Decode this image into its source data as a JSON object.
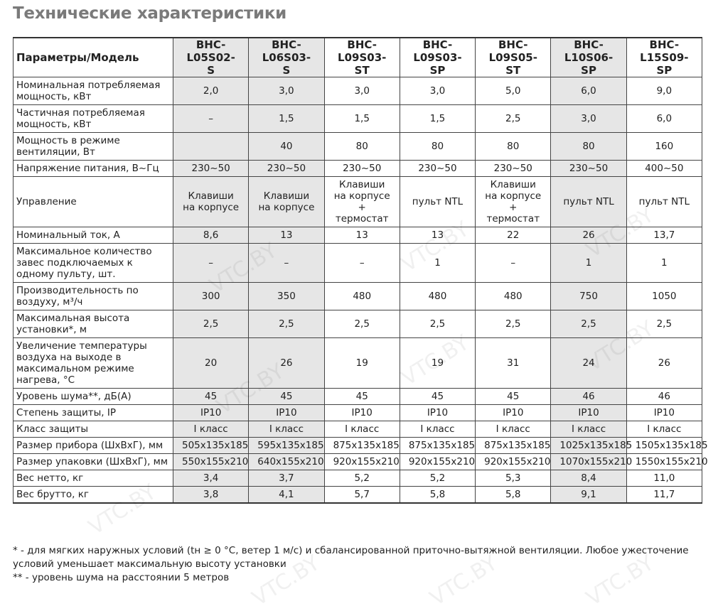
{
  "title": "Технические характеристики",
  "watermark": "VTC.BY",
  "table": {
    "header": [
      "Параметры/Модель",
      "BHC-L05S02-S",
      "BHC-L06S03-S",
      "BHC-L09S03-ST",
      "BHC-L09S03-SP",
      "BHC-L09S05-ST",
      "BHC-L10S06-SP",
      "BHC-L15S09-SP"
    ],
    "rows": [
      [
        "Номинальная потребляемая мощность, кВт",
        "2,0",
        "3,0",
        "3,0",
        "3,0",
        "5,0",
        "6,0",
        "9,0"
      ],
      [
        "Частичная потребляемая мощность, кВт",
        "–",
        "1,5",
        "1,5",
        "1,5",
        "2,5",
        "3,0",
        "6,0"
      ],
      [
        "Мощность в режиме вентиляции, Вт",
        null,
        "40",
        "80",
        "80",
        "80",
        "80",
        "160"
      ],
      [
        "Напряжение питания, В~Гц",
        "230~50",
        "230~50",
        "230~50",
        "230~50",
        "230~50",
        "230~50",
        "400~50"
      ],
      [
        "Управление",
        "Клавиши на корпусе",
        "Клавиши на корпусе",
        "Клавиши на корпусе + термостат",
        "пульт NTL",
        "Клавиши на корпусе + термостат",
        "пульт NTL",
        "пульт NTL"
      ],
      [
        "Номинальный ток, А",
        "8,6",
        "13",
        "13",
        "13",
        "22",
        "26",
        "13,7"
      ],
      [
        "Максимальное количество завес подключаемых к одному пульту, шт.",
        "–",
        "–",
        "–",
        "1",
        "–",
        "1",
        "1"
      ],
      [
        "Производительность по воздуху, м³/ч",
        "300",
        "350",
        "480",
        "480",
        "480",
        "750",
        "1050"
      ],
      [
        "Максимальная высота установки*, м",
        "2,5",
        "2,5",
        "2,5",
        "2,5",
        "2,5",
        "2,5",
        "2,5"
      ],
      [
        "Увеличение температуры воздуха на выходе в максимальном режиме нагрева, °С",
        "20",
        "26",
        "19",
        "19",
        "31",
        "24",
        "26"
      ],
      [
        "Уровень шума**, дБ(А)",
        "45",
        "45",
        "45",
        "45",
        "45",
        "46",
        "46"
      ],
      [
        "Степень защиты, IP",
        "IP10",
        "IP10",
        "IP10",
        "IP10",
        "IP10",
        "IP10",
        "IP10"
      ],
      [
        "Класс защиты",
        "I класс",
        "I класс",
        "I класс",
        "I класс",
        "I класс",
        "I класс",
        "I класс"
      ],
      [
        "Размер прибора (ШхВхГ), мм",
        "505x135x185",
        "595x135x185",
        "875x135x185",
        "875x135x185",
        "875x135x185",
        "1025x135x185",
        "1505x135x185"
      ],
      [
        "Размер упаковки (ШхВхГ), мм",
        "550x155x210",
        "640x155x210",
        "920x155x210",
        "920x155x210",
        "920x155x210",
        "1070x155x210",
        "1550x155x210"
      ],
      [
        "Вес нетто, кг",
        "3,4",
        "3,7",
        "5,2",
        "5,2",
        "5,3",
        "8,4",
        "11,0"
      ],
      [
        "Вес брутто, кг",
        "3,8",
        "4,1",
        "5,7",
        "5,8",
        "5,8",
        "9,1",
        "11,7"
      ]
    ]
  },
  "notes": [
    "* - для мягких наружных условий (tн ≥ 0 °С, ветер 1 м/с) и сбалансированной приточно-вытяжной вентиляции. Любое ужесточение условий уменьшает максимальную высоту установки",
    "** - уровень шума на расстоянии 5 метров"
  ]
}
